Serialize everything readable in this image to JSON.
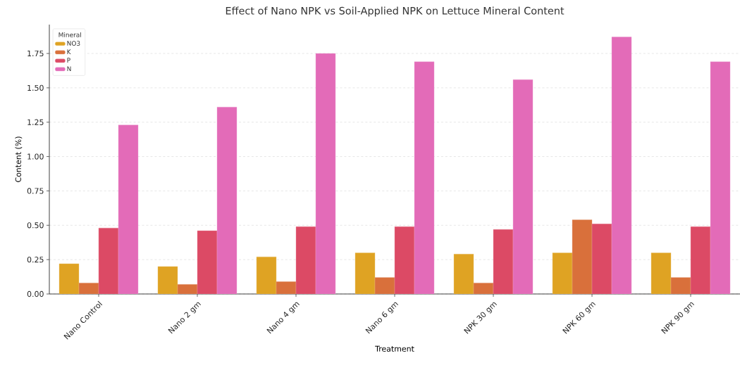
{
  "chart_data": {
    "type": "bar",
    "title": "Effect of Nano NPK vs Soil-Applied NPK on Lettuce Mineral Content",
    "xlabel": "Treatment",
    "ylabel": "Content (%)",
    "legend_title": "Mineral",
    "categories": [
      "Nano Control",
      "Nano 2 gm",
      "Nano 4 gm",
      "Nano 6 gm",
      "NPK 30 gm",
      "NPK 60 gm",
      "NPK 90 gm"
    ],
    "series": [
      {
        "name": "NO3",
        "color": "#dfa323",
        "values": [
          0.22,
          0.2,
          0.27,
          0.3,
          0.29,
          0.3,
          0.3
        ]
      },
      {
        "name": "K",
        "color": "#d9703b",
        "values": [
          0.08,
          0.07,
          0.09,
          0.12,
          0.08,
          0.54,
          0.12
        ]
      },
      {
        "name": "P",
        "color": "#dc4a65",
        "values": [
          0.48,
          0.46,
          0.49,
          0.49,
          0.47,
          0.51,
          0.49
        ]
      },
      {
        "name": "N",
        "color": "#e36bb8",
        "values": [
          1.23,
          1.36,
          1.75,
          1.69,
          1.56,
          1.87,
          1.69
        ]
      }
    ],
    "ylim": [
      0,
      1.96
    ],
    "yticks": [
      {
        "value": 0,
        "label": "0.00"
      },
      0.25,
      {
        "value": 0.5,
        "label": "0.50"
      },
      0.75,
      {
        "value": 1,
        "label": "1.00"
      },
      1.25,
      {
        "value": 1.5,
        "label": "1.50"
      },
      1.75
    ],
    "grid": "y",
    "legend": "top left"
  }
}
